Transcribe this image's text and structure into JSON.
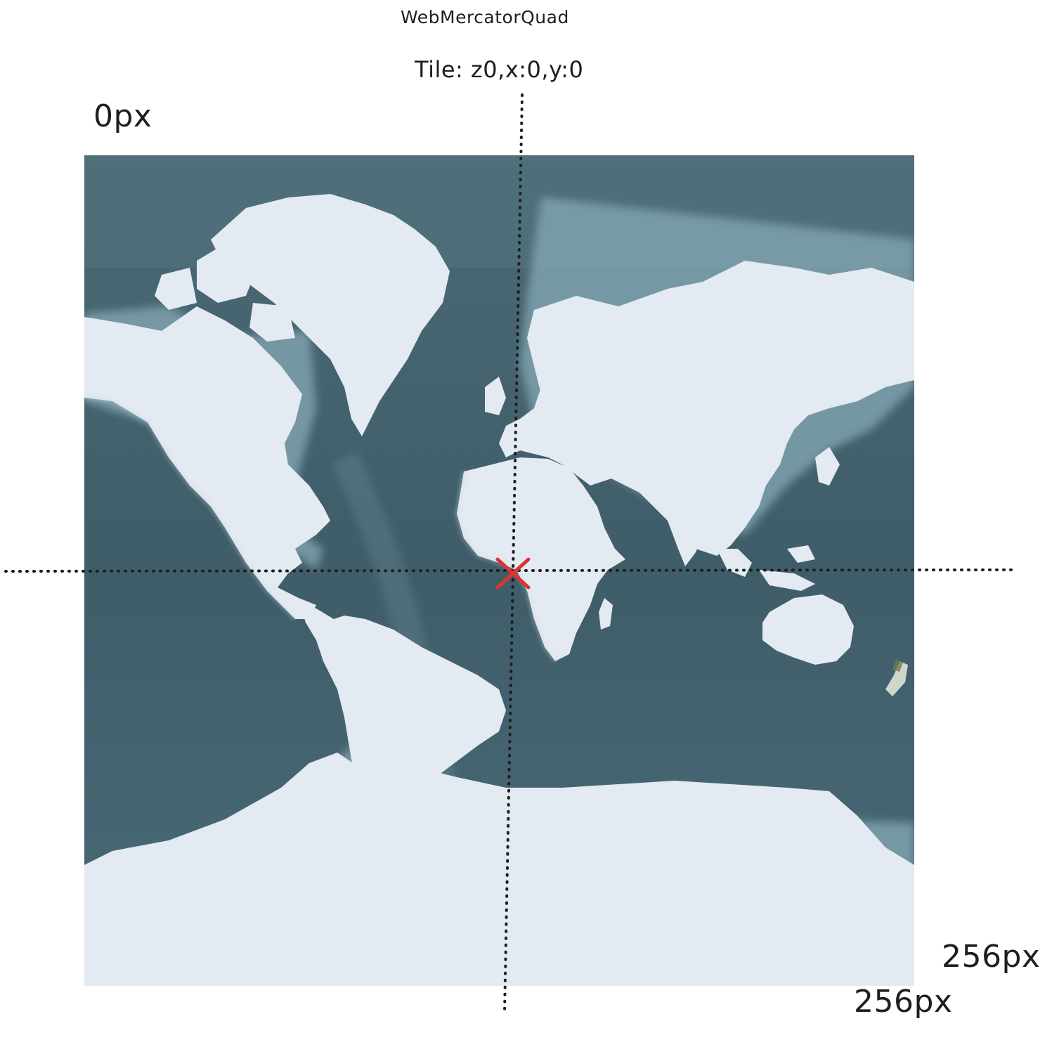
{
  "diagram": {
    "title": "WebMercatorQuad",
    "tile_label": "Tile: z0,x:0,y:0",
    "origin_label": "0px",
    "width_label": "256px",
    "height_label": "256px"
  },
  "colors": {
    "ocean_deep": "#3f5d69",
    "ocean_mid": "#557581",
    "ocean_shelf": "#86a9b6",
    "land": "#e3eaf1",
    "center_marker": "#e03131",
    "guide_line": "#1e1e1e",
    "text": "#1e1e1e"
  },
  "icons": {
    "center_marker": "x-mark-icon"
  }
}
